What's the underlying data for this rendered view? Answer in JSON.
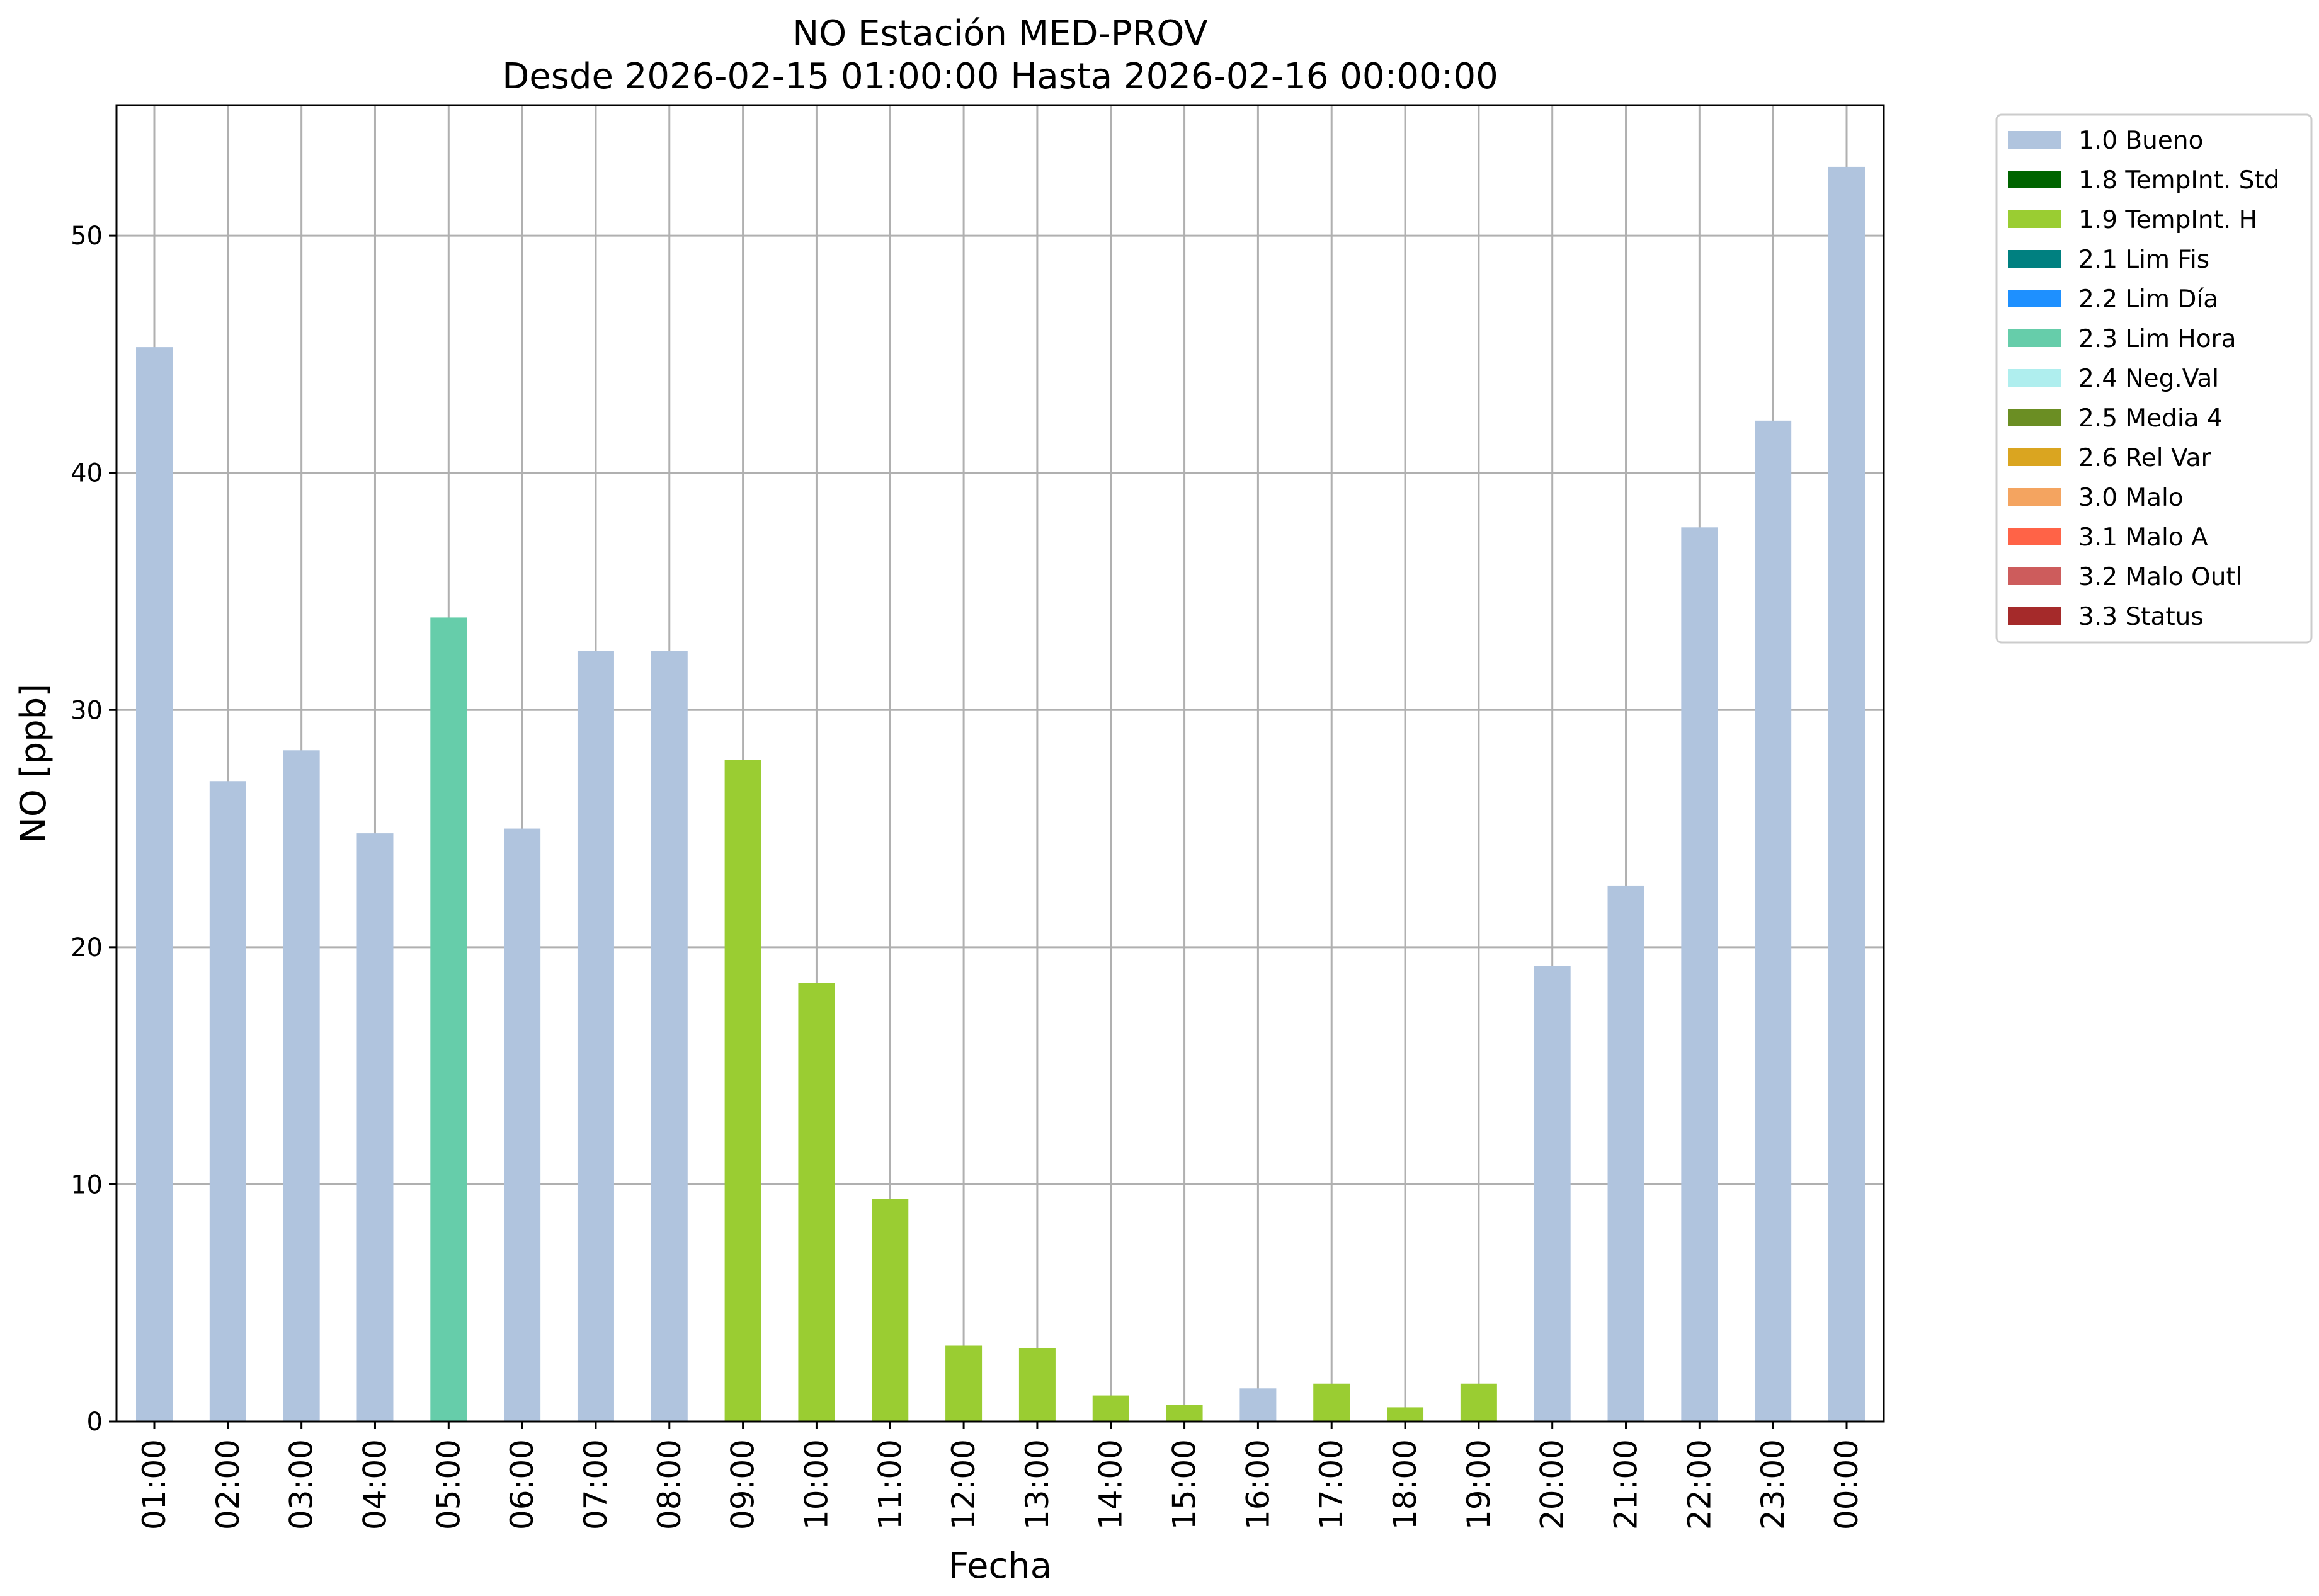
{
  "chart_data": {
    "type": "bar",
    "title": "NO Estación MED-PROV",
    "subtitle": "Desde 2026-02-15 01:00:00 Hasta 2026-02-16 00:00:00",
    "xlabel": "Fecha",
    "ylabel": "NO [ppb]",
    "ylim": [
      0,
      55.5
    ],
    "yticks": [
      0,
      10,
      20,
      30,
      40,
      50
    ],
    "grid": true,
    "legend_position": "outside-top-right",
    "categories": [
      "01:00",
      "02:00",
      "03:00",
      "04:00",
      "05:00",
      "06:00",
      "07:00",
      "08:00",
      "09:00",
      "10:00",
      "11:00",
      "12:00",
      "13:00",
      "14:00",
      "15:00",
      "16:00",
      "17:00",
      "18:00",
      "19:00",
      "20:00",
      "21:00",
      "22:00",
      "23:00",
      "00:00"
    ],
    "values": [
      45.3,
      27.0,
      28.3,
      24.8,
      33.9,
      25.0,
      32.5,
      32.5,
      27.9,
      18.5,
      9.4,
      3.2,
      3.1,
      1.1,
      0.7,
      1.4,
      1.6,
      0.6,
      1.6,
      19.2,
      22.6,
      37.7,
      42.2,
      52.9
    ],
    "flags": [
      "1.0 Bueno",
      "1.0 Bueno",
      "1.0 Bueno",
      "1.0 Bueno",
      "2.3 Lim Hora",
      "1.0 Bueno",
      "1.0 Bueno",
      "1.0 Bueno",
      "1.9 TempInt. H",
      "1.9 TempInt. H",
      "1.9 TempInt. H",
      "1.9 TempInt. H",
      "1.9 TempInt. H",
      "1.9 TempInt. H",
      "1.9 TempInt. H",
      "1.0 Bueno",
      "1.9 TempInt. H",
      "1.9 TempInt. H",
      "1.9 TempInt. H",
      "1.0 Bueno",
      "1.0 Bueno",
      "1.0 Bueno",
      "1.0 Bueno",
      "1.0 Bueno"
    ],
    "legend": [
      {
        "name": "1.0 Bueno",
        "color": "#b0c4de"
      },
      {
        "name": "1.8 TempInt. Std",
        "color": "#006400"
      },
      {
        "name": "1.9 TempInt. H",
        "color": "#9acd32"
      },
      {
        "name": "2.1 Lim Fis",
        "color": "#008080"
      },
      {
        "name": "2.2 Lim Día",
        "color": "#1e90ff"
      },
      {
        "name": "2.3 Lim Hora",
        "color": "#66cdaa"
      },
      {
        "name": "2.4 Neg.Val",
        "color": "#afeeee"
      },
      {
        "name": "2.5 Media 4",
        "color": "#6b8e23"
      },
      {
        "name": "2.6 Rel Var",
        "color": "#daa520"
      },
      {
        "name": "3.0 Malo",
        "color": "#f4a460"
      },
      {
        "name": "3.1 Malo A",
        "color": "#ff6347"
      },
      {
        "name": "3.2 Malo Outl",
        "color": "#cd5c5c"
      },
      {
        "name": "3.3 Status",
        "color": "#a52a2a"
      }
    ]
  }
}
